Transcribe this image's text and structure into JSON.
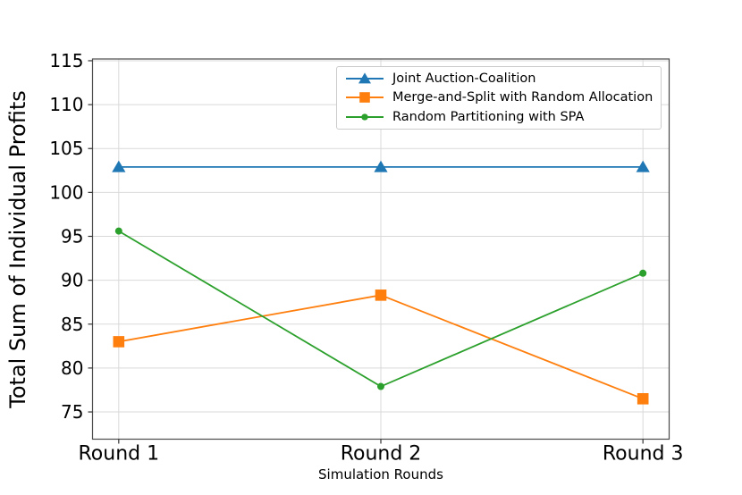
{
  "figure": {
    "background": "#ffffff"
  },
  "chart_data": {
    "type": "line",
    "title": "",
    "xlabel": "Simulation Rounds",
    "ylabel": "Total Sum of Individual Profits",
    "categories": [
      "Round 1",
      "Round 2",
      "Round 3"
    ],
    "series": [
      {
        "name": "Joint Auction-Coalition",
        "color": "#1f77b4",
        "marker": "triangle",
        "values": [
          102.9,
          102.9,
          102.9
        ]
      },
      {
        "name": "Merge-and-Split with Random Allocation",
        "color": "#ff7f0e",
        "marker": "square",
        "values": [
          83.0,
          88.3,
          76.5
        ]
      },
      {
        "name": "Random Partitioning with SPA",
        "color": "#2ca02c",
        "marker": "circle",
        "values": [
          95.6,
          77.9,
          90.8
        ]
      }
    ],
    "yticks": [
      75,
      80,
      85,
      90,
      95,
      100,
      105,
      110,
      115
    ],
    "ylim": [
      71.9,
      115.2
    ],
    "xlim": [
      -0.1,
      2.1
    ],
    "grid": true,
    "legend_position": "upper right inside plot",
    "colors": {
      "grid": "#d9d9d9",
      "spine": "#4a4a4a",
      "tick": "#333333",
      "text": "#000000",
      "legend_border": "#cccccc",
      "legend_background": "#ffffff"
    }
  }
}
